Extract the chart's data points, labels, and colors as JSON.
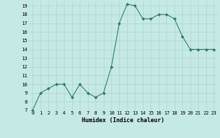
{
  "x": [
    0,
    1,
    2,
    3,
    4,
    5,
    6,
    7,
    8,
    9,
    10,
    11,
    12,
    13,
    14,
    15,
    16,
    17,
    18,
    19,
    20,
    21,
    22,
    23
  ],
  "y": [
    7,
    9,
    9.5,
    10,
    10,
    8.5,
    10,
    9,
    8.5,
    9,
    12,
    17,
    19.2,
    19,
    17.5,
    17.5,
    18,
    18,
    17.5,
    15.5,
    14,
    14,
    14,
    14
  ],
  "line_color": "#2d7a6e",
  "marker": "D",
  "marker_size": 2.0,
  "bg_color": "#c5eae6",
  "grid_color": "#aad4cf",
  "xlabel": "Humidex (Indice chaleur)",
  "ylim": [
    7,
    19.5
  ],
  "xlim": [
    -0.5,
    23.5
  ],
  "yticks": [
    7,
    8,
    9,
    10,
    11,
    12,
    13,
    14,
    15,
    16,
    17,
    18,
    19
  ],
  "xticks": [
    0,
    1,
    2,
    3,
    4,
    5,
    6,
    7,
    8,
    9,
    10,
    11,
    12,
    13,
    14,
    15,
    16,
    17,
    18,
    19,
    20,
    21,
    22,
    23
  ],
  "tick_fontsize": 5.2,
  "xlabel_fontsize": 6.0
}
